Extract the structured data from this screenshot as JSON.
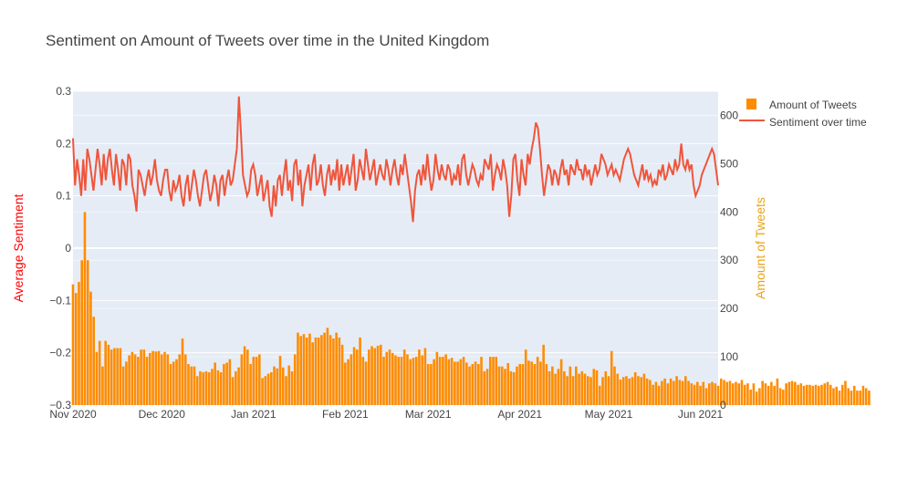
{
  "chart_data": {
    "type": "bar+line",
    "title": "Sentiment on Amount of Tweets over time in the United Kingdom",
    "xlabel": "",
    "y_left_label": "Average Sentiment",
    "y_right_label": "Amount of Tweets",
    "x_range": [
      "2020-11-01",
      "2021-06-07"
    ],
    "y_left_range": [
      -0.3,
      0.3
    ],
    "y_right_range": [
      0,
      650
    ],
    "x_tick_labels": [
      "Nov 2020",
      "Dec 2020",
      "Jan 2021",
      "Feb 2021",
      "Mar 2021",
      "Apr 2021",
      "May 2021",
      "Jun 2021"
    ],
    "x_tick_dates": [
      "2020-11-01",
      "2020-12-01",
      "2021-01-01",
      "2021-02-01",
      "2021-03-01",
      "2021-04-01",
      "2021-05-01",
      "2021-06-01"
    ],
    "y_left_ticks": [
      "0.3",
      "0.2",
      "0.1",
      "0",
      "−0.1",
      "−0.2",
      "−0.3"
    ],
    "y_left_tick_values": [
      0.3,
      0.2,
      0.1,
      0,
      -0.1,
      -0.2,
      -0.3
    ],
    "y_right_ticks": [
      "600",
      "500",
      "400",
      "300",
      "200",
      "100",
      "0"
    ],
    "y_right_tick_values": [
      600,
      500,
      400,
      300,
      200,
      100,
      0
    ],
    "grid": true,
    "legend_position": "top-right",
    "series": [
      {
        "name": "Amount of Tweets",
        "type": "bar",
        "axis": "right",
        "color": "#ff8c00",
        "start_date": "2020-11-01",
        "values": [
          250,
          232,
          255,
          300,
          400,
          300,
          235,
          183,
          110,
          133,
          80,
          133,
          125,
          115,
          118,
          118,
          118,
          80,
          90,
          103,
          110,
          105,
          100,
          115,
          115,
          100,
          108,
          112,
          111,
          112,
          105,
          110,
          105,
          85,
          90,
          95,
          105,
          138,
          105,
          85,
          80,
          80,
          60,
          70,
          68,
          70,
          68,
          75,
          88,
          72,
          68,
          85,
          88,
          95,
          58,
          70,
          78,
          105,
          122,
          115,
          85,
          100,
          100,
          105,
          56,
          60,
          65,
          68,
          80,
          76,
          102,
          78,
          60,
          82,
          70,
          105,
          150,
          143,
          147,
          140,
          148,
          130,
          140,
          140,
          145,
          150,
          160,
          145,
          138,
          150,
          140,
          125,
          88,
          95,
          105,
          120,
          115,
          140,
          100,
          90,
          115,
          122,
          118,
          123,
          125,
          100,
          110,
          115,
          108,
          103,
          100,
          100,
          115,
          105,
          95,
          98,
          100,
          115,
          103,
          118,
          85,
          85,
          95,
          110,
          100,
          100,
          105,
          95,
          98,
          90,
          90,
          95,
          100,
          88,
          80,
          85,
          90,
          85,
          100,
          70,
          75,
          100,
          100,
          100,
          80,
          80,
          75,
          87,
          70,
          68,
          80,
          85,
          85,
          115,
          92,
          90,
          85,
          100,
          90,
          125,
          85,
          70,
          80,
          65,
          75,
          95,
          70,
          60,
          80,
          60,
          80,
          65,
          70,
          65,
          60,
          58,
          75,
          72,
          40,
          58,
          70,
          60,
          112,
          80,
          65,
          53,
          58,
          60,
          55,
          58,
          68,
          60,
          58,
          65,
          55,
          52,
          42,
          48,
          40,
          50,
          55,
          45,
          55,
          50,
          60,
          52,
          50,
          60,
          50,
          45,
          42,
          48,
          40,
          48,
          35,
          45,
          48,
          45,
          40,
          55,
          52,
          48,
          50,
          45,
          48,
          45,
          52,
          42,
          45,
          32,
          45,
          28,
          35,
          50,
          45,
          40,
          48,
          40,
          55,
          35,
          32,
          45,
          48,
          50,
          48,
          42,
          45,
          40,
          42,
          42,
          40,
          42,
          40,
          42,
          45,
          48,
          42,
          35,
          38,
          30,
          42,
          50,
          35,
          30,
          40,
          30,
          30,
          40,
          35,
          30
        ]
      },
      {
        "name": "Sentiment over time",
        "type": "line",
        "axis": "left",
        "color": "#ef553b",
        "start_date": "2020-11-01",
        "values": [
          0.21,
          0.12,
          0.17,
          0.14,
          0.1,
          0.17,
          0.11,
          0.19,
          0.17,
          0.14,
          0.11,
          0.15,
          0.19,
          0.16,
          0.12,
          0.18,
          0.13,
          0.17,
          0.19,
          0.15,
          0.12,
          0.18,
          0.15,
          0.11,
          0.17,
          0.16,
          0.12,
          0.18,
          0.17,
          0.12,
          0.1,
          0.07,
          0.15,
          0.14,
          0.12,
          0.1,
          0.13,
          0.15,
          0.12,
          0.14,
          0.17,
          0.13,
          0.11,
          0.1,
          0.13,
          0.15,
          0.15,
          0.11,
          0.09,
          0.13,
          0.11,
          0.12,
          0.14,
          0.1,
          0.08,
          0.12,
          0.14,
          0.09,
          0.12,
          0.15,
          0.13,
          0.1,
          0.08,
          0.11,
          0.14,
          0.15,
          0.12,
          0.09,
          0.11,
          0.14,
          0.12,
          0.08,
          0.13,
          0.14,
          0.1,
          0.13,
          0.15,
          0.12,
          0.13,
          0.16,
          0.19,
          0.29,
          0.22,
          0.14,
          0.12,
          0.1,
          0.11,
          0.15,
          0.16,
          0.14,
          0.1,
          0.12,
          0.14,
          0.09,
          0.11,
          0.13,
          0.08,
          0.06,
          0.12,
          0.08,
          0.13,
          0.14,
          0.1,
          0.14,
          0.17,
          0.11,
          0.13,
          0.09,
          0.16,
          0.17,
          0.12,
          0.15,
          0.08,
          0.12,
          0.14,
          0.16,
          0.11,
          0.16,
          0.18,
          0.12,
          0.13,
          0.16,
          0.12,
          0.1,
          0.14,
          0.16,
          0.12,
          0.15,
          0.13,
          0.17,
          0.11,
          0.16,
          0.12,
          0.14,
          0.16,
          0.12,
          0.15,
          0.18,
          0.11,
          0.13,
          0.17,
          0.15,
          0.13,
          0.19,
          0.16,
          0.13,
          0.15,
          0.17,
          0.12,
          0.14,
          0.16,
          0.14,
          0.13,
          0.17,
          0.15,
          0.12,
          0.15,
          0.17,
          0.14,
          0.12,
          0.16,
          0.14,
          0.18,
          0.15,
          0.12,
          0.09,
          0.05,
          0.11,
          0.14,
          0.15,
          0.12,
          0.16,
          0.13,
          0.18,
          0.14,
          0.11,
          0.13,
          0.18,
          0.15,
          0.13,
          0.16,
          0.14,
          0.13,
          0.16,
          0.15,
          0.12,
          0.14,
          0.13,
          0.16,
          0.12,
          0.17,
          0.18,
          0.14,
          0.12,
          0.14,
          0.16,
          0.15,
          0.13,
          0.12,
          0.14,
          0.13,
          0.17,
          0.16,
          0.15,
          0.18,
          0.11,
          0.14,
          0.16,
          0.15,
          0.13,
          0.17,
          0.15,
          0.12,
          0.06,
          0.1,
          0.17,
          0.18,
          0.13,
          0.1,
          0.17,
          0.14,
          0.12,
          0.18,
          0.16,
          0.19,
          0.21,
          0.24,
          0.23,
          0.19,
          0.14,
          0.1,
          0.13,
          0.16,
          0.15,
          0.12,
          0.15,
          0.14,
          0.12,
          0.15,
          0.17,
          0.14,
          0.15,
          0.12,
          0.16,
          0.15,
          0.14,
          0.17,
          0.15,
          0.15,
          0.13,
          0.16,
          0.14,
          0.15,
          0.12,
          0.14,
          0.16,
          0.14,
          0.15,
          0.18,
          0.17,
          0.16,
          0.14,
          0.15,
          0.16,
          0.14,
          0.15,
          0.14,
          0.13,
          0.15,
          0.17,
          0.18,
          0.19,
          0.18,
          0.16,
          0.14,
          0.13,
          0.12,
          0.14,
          0.16,
          0.13,
          0.15,
          0.13,
          0.14,
          0.12,
          0.13,
          0.12,
          0.15,
          0.14,
          0.16,
          0.13,
          0.14,
          0.16,
          0.15,
          0.14,
          0.17,
          0.15,
          0.16,
          0.2,
          0.16,
          0.15,
          0.17,
          0.15,
          0.16,
          0.12,
          0.1,
          0.11,
          0.12,
          0.14,
          0.15,
          0.16,
          0.17,
          0.18,
          0.19,
          0.18,
          0.15,
          0.12
        ]
      }
    ]
  }
}
